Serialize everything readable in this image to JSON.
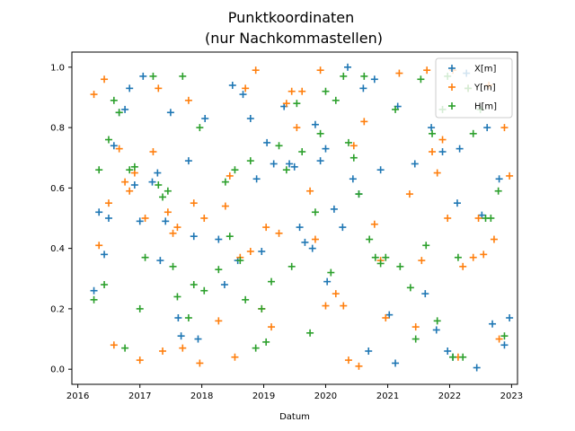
{
  "chart_data": {
    "type": "scatter",
    "title_lines": [
      "Punktkoordinaten",
      "(nur Nachkommastellen)"
    ],
    "xlabel": "Datum",
    "ylabel": "",
    "x_axis_type": "date",
    "xlim": [
      "2015-11-27",
      "2023-02-05"
    ],
    "ylim": [
      -0.05,
      1.05
    ],
    "x_ticks": [
      {
        "date": "2016-01-01",
        "label": "2016"
      },
      {
        "date": "2017-01-01",
        "label": "2017"
      },
      {
        "date": "2018-01-01",
        "label": "2018"
      },
      {
        "date": "2019-01-01",
        "label": "2019"
      },
      {
        "date": "2020-01-01",
        "label": "2020"
      },
      {
        "date": "2021-01-01",
        "label": "2021"
      },
      {
        "date": "2022-01-01",
        "label": "2022"
      },
      {
        "date": "2023-01-01",
        "label": "2023"
      }
    ],
    "y_ticks": [
      {
        "value": 0.0,
        "label": "0.0"
      },
      {
        "value": 0.2,
        "label": "0.2"
      },
      {
        "value": 0.4,
        "label": "0.4"
      },
      {
        "value": 0.6,
        "label": "0.6"
      },
      {
        "value": 0.8,
        "label": "0.8"
      },
      {
        "value": 1.0,
        "label": "1.0"
      }
    ],
    "grid": false,
    "legend_position": "top-right",
    "marker": "plus",
    "series": [
      {
        "name": "X[m]",
        "color": "#1f77b4",
        "points": [
          {
            "x": "2016-04-05",
            "y": 0.26
          },
          {
            "x": "2016-05-05",
            "y": 0.52
          },
          {
            "x": "2016-06-05",
            "y": 0.38
          },
          {
            "x": "2016-07-01",
            "y": 0.5
          },
          {
            "x": "2016-08-01",
            "y": 0.74
          },
          {
            "x": "2016-09-01",
            "y": 0.85
          },
          {
            "x": "2016-10-05",
            "y": 0.86
          },
          {
            "x": "2016-11-01",
            "y": 0.93
          },
          {
            "x": "2016-12-01",
            "y": 0.61
          },
          {
            "x": "2017-01-01",
            "y": 0.49
          },
          {
            "x": "2017-01-20",
            "y": 0.97
          },
          {
            "x": "2017-03-15",
            "y": 0.62
          },
          {
            "x": "2017-04-15",
            "y": 0.65
          },
          {
            "x": "2017-05-01",
            "y": 0.36
          },
          {
            "x": "2017-06-01",
            "y": 0.49
          },
          {
            "x": "2017-07-01",
            "y": 0.85
          },
          {
            "x": "2017-08-15",
            "y": 0.17
          },
          {
            "x": "2017-09-01",
            "y": 0.11
          },
          {
            "x": "2017-10-15",
            "y": 0.69
          },
          {
            "x": "2017-11-15",
            "y": 0.44
          },
          {
            "x": "2017-12-10",
            "y": 0.1
          },
          {
            "x": "2018-01-20",
            "y": 0.83
          },
          {
            "x": "2018-04-10",
            "y": 0.43
          },
          {
            "x": "2018-05-15",
            "y": 0.28
          },
          {
            "x": "2018-07-01",
            "y": 0.94
          },
          {
            "x": "2018-08-01",
            "y": 0.36
          },
          {
            "x": "2018-09-01",
            "y": 0.91
          },
          {
            "x": "2018-10-15",
            "y": 0.83
          },
          {
            "x": "2018-11-20",
            "y": 0.63
          },
          {
            "x": "2018-12-20",
            "y": 0.39
          },
          {
            "x": "2019-01-20",
            "y": 0.75
          },
          {
            "x": "2019-03-01",
            "y": 0.68
          },
          {
            "x": "2019-05-01",
            "y": 0.87
          },
          {
            "x": "2019-06-01",
            "y": 0.68
          },
          {
            "x": "2019-07-01",
            "y": 0.67
          },
          {
            "x": "2019-08-01",
            "y": 0.47
          },
          {
            "x": "2019-09-01",
            "y": 0.42
          },
          {
            "x": "2019-10-15",
            "y": 0.4
          },
          {
            "x": "2019-11-01",
            "y": 0.81
          },
          {
            "x": "2019-12-01",
            "y": 0.69
          },
          {
            "x": "2020-01-01",
            "y": 0.73
          },
          {
            "x": "2020-01-10",
            "y": 0.29
          },
          {
            "x": "2020-02-20",
            "y": 0.53
          },
          {
            "x": "2020-04-10",
            "y": 0.47
          },
          {
            "x": "2020-05-10",
            "y": 1.0
          },
          {
            "x": "2020-06-10",
            "y": 0.63
          },
          {
            "x": "2020-07-15",
            "y": 0.58
          },
          {
            "x": "2020-08-10",
            "y": 0.93
          },
          {
            "x": "2020-09-10",
            "y": 0.06
          },
          {
            "x": "2020-10-15",
            "y": 0.96
          },
          {
            "x": "2020-11-20",
            "y": 0.66
          },
          {
            "x": "2021-01-10",
            "y": 0.18
          },
          {
            "x": "2021-02-15",
            "y": 0.02
          },
          {
            "x": "2021-03-01",
            "y": 0.87
          },
          {
            "x": "2021-06-10",
            "y": 0.68
          },
          {
            "x": "2021-08-10",
            "y": 0.25
          },
          {
            "x": "2021-09-15",
            "y": 0.8
          },
          {
            "x": "2021-10-15",
            "y": 0.13
          },
          {
            "x": "2021-11-20",
            "y": 0.72
          },
          {
            "x": "2021-12-20",
            "y": 0.06
          },
          {
            "x": "2022-01-20",
            "y": 0.04
          },
          {
            "x": "2022-02-15",
            "y": 0.55
          },
          {
            "x": "2022-03-01",
            "y": 0.73
          },
          {
            "x": "2022-04-10",
            "y": 0.98
          },
          {
            "x": "2022-06-10",
            "y": 0.005
          },
          {
            "x": "2022-07-10",
            "y": 0.51
          },
          {
            "x": "2022-08-10",
            "y": 0.8
          },
          {
            "x": "2022-09-10",
            "y": 0.15
          },
          {
            "x": "2022-10-20",
            "y": 0.63
          },
          {
            "x": "2022-11-20",
            "y": 0.08
          },
          {
            "x": "2022-12-20",
            "y": 0.17
          }
        ]
      },
      {
        "name": "Y[m]",
        "color": "#ff7f0e",
        "points": [
          {
            "x": "2016-04-05",
            "y": 0.91
          },
          {
            "x": "2016-05-05",
            "y": 0.41
          },
          {
            "x": "2016-06-05",
            "y": 0.96
          },
          {
            "x": "2016-07-01",
            "y": 0.55
          },
          {
            "x": "2016-08-01",
            "y": 0.08
          },
          {
            "x": "2016-09-01",
            "y": 0.73
          },
          {
            "x": "2016-10-05",
            "y": 0.62
          },
          {
            "x": "2016-11-01",
            "y": 0.59
          },
          {
            "x": "2016-12-01",
            "y": 0.65
          },
          {
            "x": "2017-01-01",
            "y": 0.03
          },
          {
            "x": "2017-02-01",
            "y": 0.5
          },
          {
            "x": "2017-03-20",
            "y": 0.72
          },
          {
            "x": "2017-04-20",
            "y": 0.93
          },
          {
            "x": "2017-05-15",
            "y": 0.06
          },
          {
            "x": "2017-06-15",
            "y": 0.52
          },
          {
            "x": "2017-07-15",
            "y": 0.45
          },
          {
            "x": "2017-08-10",
            "y": 0.47
          },
          {
            "x": "2017-09-10",
            "y": 0.07
          },
          {
            "x": "2017-10-15",
            "y": 0.89
          },
          {
            "x": "2017-11-15",
            "y": 0.55
          },
          {
            "x": "2017-12-20",
            "y": 0.02
          },
          {
            "x": "2018-01-15",
            "y": 0.5
          },
          {
            "x": "2018-04-10",
            "y": 0.16
          },
          {
            "x": "2018-05-20",
            "y": 0.54
          },
          {
            "x": "2018-06-15",
            "y": 0.64
          },
          {
            "x": "2018-07-15",
            "y": 0.04
          },
          {
            "x": "2018-08-15",
            "y": 0.37
          },
          {
            "x": "2018-09-15",
            "y": 0.93
          },
          {
            "x": "2018-10-15",
            "y": 0.39
          },
          {
            "x": "2018-11-15",
            "y": 0.99
          },
          {
            "x": "2018-12-20",
            "y": 0.2
          },
          {
            "x": "2019-01-15",
            "y": 0.47
          },
          {
            "x": "2019-02-15",
            "y": 0.14
          },
          {
            "x": "2019-04-01",
            "y": 0.45
          },
          {
            "x": "2019-05-15",
            "y": 0.88
          },
          {
            "x": "2019-06-15",
            "y": 0.92
          },
          {
            "x": "2019-07-15",
            "y": 0.8
          },
          {
            "x": "2019-08-15",
            "y": 0.92
          },
          {
            "x": "2019-10-01",
            "y": 0.59
          },
          {
            "x": "2019-11-01",
            "y": 0.43
          },
          {
            "x": "2019-12-01",
            "y": 0.99
          },
          {
            "x": "2020-01-01",
            "y": 0.21
          },
          {
            "x": "2020-03-01",
            "y": 0.25
          },
          {
            "x": "2020-04-15",
            "y": 0.21
          },
          {
            "x": "2020-05-15",
            "y": 0.03
          },
          {
            "x": "2020-06-15",
            "y": 0.74
          },
          {
            "x": "2020-07-15",
            "y": 0.01
          },
          {
            "x": "2020-08-15",
            "y": 0.82
          },
          {
            "x": "2020-10-15",
            "y": 0.48
          },
          {
            "x": "2020-11-20",
            "y": 0.36
          },
          {
            "x": "2020-12-20",
            "y": 0.17
          },
          {
            "x": "2021-03-10",
            "y": 0.98
          },
          {
            "x": "2021-05-10",
            "y": 0.58
          },
          {
            "x": "2021-06-15",
            "y": 0.14
          },
          {
            "x": "2021-07-20",
            "y": 0.36
          },
          {
            "x": "2021-08-20",
            "y": 0.99
          },
          {
            "x": "2021-09-20",
            "y": 0.72
          },
          {
            "x": "2021-10-20",
            "y": 0.65
          },
          {
            "x": "2021-11-20",
            "y": 0.76
          },
          {
            "x": "2021-12-20",
            "y": 0.5
          },
          {
            "x": "2022-01-20",
            "y": 0.99
          },
          {
            "x": "2022-02-20",
            "y": 0.04
          },
          {
            "x": "2022-03-20",
            "y": 0.34
          },
          {
            "x": "2022-04-20",
            "y": 0.93
          },
          {
            "x": "2022-05-20",
            "y": 0.37
          },
          {
            "x": "2022-06-20",
            "y": 0.5
          },
          {
            "x": "2022-07-20",
            "y": 0.38
          },
          {
            "x": "2022-08-20",
            "y": 0.94
          },
          {
            "x": "2022-09-20",
            "y": 0.43
          },
          {
            "x": "2022-10-20",
            "y": 0.1
          },
          {
            "x": "2022-11-20",
            "y": 0.8
          },
          {
            "x": "2022-12-20",
            "y": 0.64
          }
        ]
      },
      {
        "name": "H[m]",
        "color": "#2ca02c",
        "points": [
          {
            "x": "2016-04-05",
            "y": 0.23
          },
          {
            "x": "2016-05-05",
            "y": 0.66
          },
          {
            "x": "2016-06-05",
            "y": 0.28
          },
          {
            "x": "2016-07-01",
            "y": 0.76
          },
          {
            "x": "2016-08-01",
            "y": 0.89
          },
          {
            "x": "2016-09-01",
            "y": 0.85
          },
          {
            "x": "2016-10-05",
            "y": 0.07
          },
          {
            "x": "2016-11-01",
            "y": 0.66
          },
          {
            "x": "2016-12-01",
            "y": 0.67
          },
          {
            "x": "2017-01-01",
            "y": 0.2
          },
          {
            "x": "2017-02-01",
            "y": 0.37
          },
          {
            "x": "2017-03-20",
            "y": 0.97
          },
          {
            "x": "2017-04-20",
            "y": 0.61
          },
          {
            "x": "2017-05-15",
            "y": 0.57
          },
          {
            "x": "2017-06-15",
            "y": 0.59
          },
          {
            "x": "2017-07-15",
            "y": 0.34
          },
          {
            "x": "2017-08-10",
            "y": 0.24
          },
          {
            "x": "2017-09-10",
            "y": 0.97
          },
          {
            "x": "2017-10-15",
            "y": 0.17
          },
          {
            "x": "2017-11-15",
            "y": 0.28
          },
          {
            "x": "2017-12-20",
            "y": 0.8
          },
          {
            "x": "2018-01-15",
            "y": 0.26
          },
          {
            "x": "2018-04-10",
            "y": 0.33
          },
          {
            "x": "2018-05-20",
            "y": 0.62
          },
          {
            "x": "2018-06-15",
            "y": 0.44
          },
          {
            "x": "2018-07-15",
            "y": 0.66
          },
          {
            "x": "2018-08-15",
            "y": 0.36
          },
          {
            "x": "2018-09-15",
            "y": 0.23
          },
          {
            "x": "2018-10-15",
            "y": 0.69
          },
          {
            "x": "2018-11-15",
            "y": 0.07
          },
          {
            "x": "2018-12-20",
            "y": 0.2
          },
          {
            "x": "2019-01-15",
            "y": 0.09
          },
          {
            "x": "2019-02-15",
            "y": 0.29
          },
          {
            "x": "2019-04-01",
            "y": 0.74
          },
          {
            "x": "2019-05-15",
            "y": 0.66
          },
          {
            "x": "2019-06-15",
            "y": 0.34
          },
          {
            "x": "2019-07-15",
            "y": 0.88
          },
          {
            "x": "2019-08-15",
            "y": 0.72
          },
          {
            "x": "2019-10-01",
            "y": 0.12
          },
          {
            "x": "2019-11-01",
            "y": 0.52
          },
          {
            "x": "2019-12-01",
            "y": 0.78
          },
          {
            "x": "2020-01-01",
            "y": 0.92
          },
          {
            "x": "2020-02-01",
            "y": 0.32
          },
          {
            "x": "2020-03-01",
            "y": 0.89
          },
          {
            "x": "2020-04-15",
            "y": 0.97
          },
          {
            "x": "2020-05-15",
            "y": 0.75
          },
          {
            "x": "2020-06-15",
            "y": 0.7
          },
          {
            "x": "2020-07-15",
            "y": 0.58
          },
          {
            "x": "2020-08-15",
            "y": 0.97
          },
          {
            "x": "2020-09-15",
            "y": 0.43
          },
          {
            "x": "2020-10-20",
            "y": 0.37
          },
          {
            "x": "2020-11-20",
            "y": 0.35
          },
          {
            "x": "2020-12-20",
            "y": 0.37
          },
          {
            "x": "2021-02-15",
            "y": 0.86
          },
          {
            "x": "2021-03-15",
            "y": 0.34
          },
          {
            "x": "2021-05-15",
            "y": 0.27
          },
          {
            "x": "2021-06-15",
            "y": 0.1
          },
          {
            "x": "2021-07-15",
            "y": 0.96
          },
          {
            "x": "2021-08-15",
            "y": 0.41
          },
          {
            "x": "2021-09-20",
            "y": 0.78
          },
          {
            "x": "2021-10-20",
            "y": 0.16
          },
          {
            "x": "2021-11-20",
            "y": 0.86
          },
          {
            "x": "2021-12-20",
            "y": 0.97
          },
          {
            "x": "2022-01-20",
            "y": 0.04
          },
          {
            "x": "2022-02-20",
            "y": 0.37
          },
          {
            "x": "2022-03-20",
            "y": 0.04
          },
          {
            "x": "2022-04-20",
            "y": 0.93
          },
          {
            "x": "2022-05-20",
            "y": 0.78
          },
          {
            "x": "2022-07-01",
            "y": 0.86
          },
          {
            "x": "2022-08-01",
            "y": 0.5
          },
          {
            "x": "2022-09-01",
            "y": 0.5
          },
          {
            "x": "2022-10-15",
            "y": 0.59
          },
          {
            "x": "2022-11-20",
            "y": 0.11
          }
        ]
      }
    ]
  }
}
